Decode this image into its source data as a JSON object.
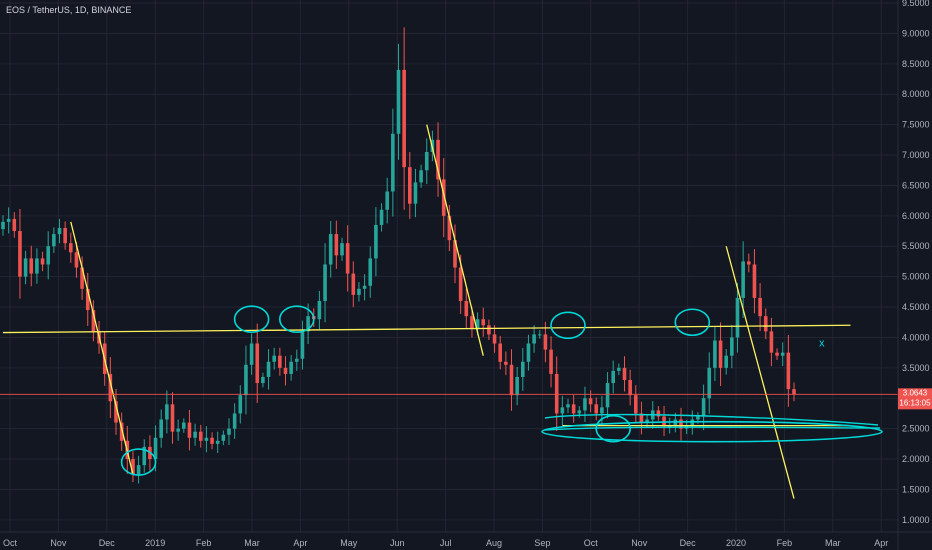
{
  "header": {
    "title": "EOS / TetherUS, 1D, BINANCE"
  },
  "price_tag": {
    "price": "3.0643",
    "countdown": "16:13:05"
  },
  "colors": {
    "background": "#131722",
    "grid": "#232632",
    "up": "#26a69a",
    "down": "#ef5350",
    "trendline": "#fff35c",
    "annotation": "#00d8d8",
    "price_tag": "#ef5350"
  },
  "chart_data": {
    "type": "candlestick",
    "title": "EOS / TetherUS, 1D, BINANCE",
    "y_axis": {
      "position": "right",
      "ylim": [
        0.8,
        9.55
      ],
      "ticks": [
        "1.0000",
        "1.5000",
        "2.0000",
        "2.5000",
        "3.0000",
        "3.5000",
        "4.0000",
        "4.5000",
        "5.0000",
        "5.5000",
        "6.0000",
        "6.5000",
        "7.0000",
        "7.5000",
        "8.0000",
        "8.5000",
        "9.0000",
        "9.5000"
      ]
    },
    "x_axis": {
      "labels": [
        "Oct",
        "Nov",
        "Dec",
        "2019",
        "Feb",
        "Mar",
        "Apr",
        "May",
        "Jun",
        "Jul",
        "Aug",
        "Sep",
        "Oct",
        "Nov",
        "Dec",
        "2020",
        "Feb",
        "Mar",
        "Apr"
      ]
    },
    "last_price": 3.0643,
    "series": [
      {
        "values": [
          5.9,
          5.95,
          5.75,
          5.0,
          5.3,
          5.05,
          5.3,
          5.2,
          5.5,
          5.7,
          5.8,
          5.55,
          5.4,
          5.15,
          4.8,
          4.45,
          4.1,
          3.9,
          3.4,
          2.95,
          2.6,
          2.3,
          2.0,
          1.75,
          1.9,
          2.2,
          2.0,
          2.35,
          2.65,
          2.9,
          2.45,
          2.5,
          2.6,
          2.35,
          2.45,
          2.3,
          2.35,
          2.25,
          2.3,
          2.4,
          2.5,
          2.75,
          3.05,
          3.55,
          3.9,
          3.25,
          3.35,
          3.6,
          3.7,
          3.5,
          3.4,
          3.6,
          3.65,
          4.1,
          4.35,
          4.3,
          4.6,
          5.2,
          5.7,
          5.35,
          5.55,
          5.05,
          4.7,
          4.8,
          4.85,
          5.3,
          5.85,
          6.1,
          6.4,
          7.35,
          8.4,
          6.8,
          6.2,
          6.55,
          6.75,
          7.05,
          7.25,
          6.6,
          6.0,
          5.6,
          5.15,
          4.6,
          4.35,
          4.15,
          4.3,
          4.2,
          4.05,
          3.9,
          3.6,
          3.55,
          3.05,
          3.35,
          3.6,
          3.9,
          4.05,
          4.05,
          3.8,
          3.4,
          2.75,
          2.85,
          2.9,
          2.75,
          2.8,
          3.0,
          2.9,
          2.75,
          2.85,
          3.25,
          3.45,
          3.5,
          3.3,
          3.05,
          2.75,
          2.6,
          2.65,
          2.8,
          2.7,
          2.55,
          2.55,
          2.65,
          2.5,
          2.55,
          2.65,
          2.7,
          3.0,
          3.5,
          3.95,
          3.5,
          3.7,
          4.0,
          4.65,
          5.25,
          5.2,
          4.65,
          4.35,
          4.1,
          3.75,
          3.7,
          3.75,
          3.15,
          3.06
        ]
      }
    ],
    "annotations": {
      "horizontal_lines": [
        {
          "from": [
            0,
            4.08
          ],
          "to": [
            150,
            4.2
          ]
        }
      ],
      "trend_lines": [
        {
          "from": [
            12,
            5.9
          ],
          "to": [
            23,
            1.75
          ]
        },
        {
          "from": [
            75,
            7.5
          ],
          "to": [
            85,
            3.7
          ]
        },
        {
          "from": [
            128,
            5.5
          ],
          "to": [
            140,
            1.35
          ]
        }
      ],
      "support_line": {
        "from": [
          99,
          2.55
        ],
        "to": [
          150,
          2.55
        ]
      },
      "circle_marks": [
        {
          "x": 24,
          "y": 1.95
        },
        {
          "x": 44,
          "y": 4.3
        },
        {
          "x": 52,
          "y": 4.3
        },
        {
          "x": 100,
          "y": 4.2
        },
        {
          "x": 108,
          "y": 2.5
        },
        {
          "x": 122,
          "y": 4.25
        },
        {
          "x": 99,
          "y": 2.45
        }
      ],
      "x_mark": {
        "x": 143,
        "y": 3.9,
        "label": "x"
      }
    }
  }
}
